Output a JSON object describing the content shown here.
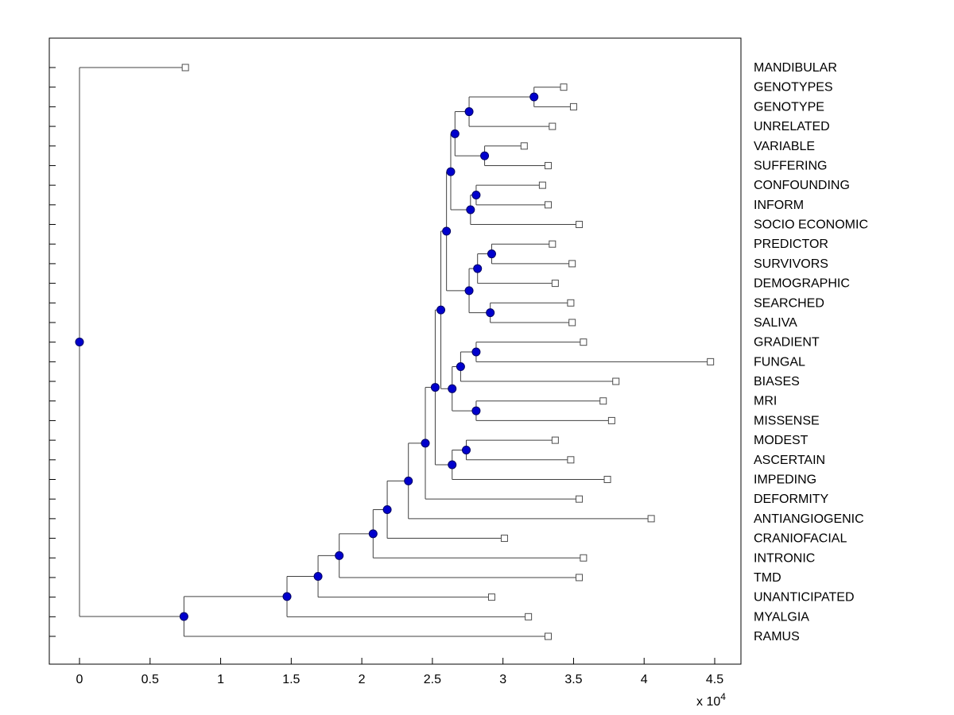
{
  "figure": {
    "colors": {
      "background": "#ffffff",
      "axis": "#000000",
      "text": "#000000",
      "branch_line": "#404040",
      "branch_node_fill": "#0000cd",
      "branch_node_edge": "#000066",
      "leaf_marker_fill": "#ffffff",
      "leaf_marker_edge": "#4d4d4d"
    }
  },
  "chart_data": {
    "type": "dendrogram",
    "title": "",
    "xlabel": "",
    "ylabel": "",
    "orientation": "horizontal-leaves-right",
    "grid": false,
    "legend": false,
    "x_axis": {
      "tick_labels": [
        "0",
        "0.5",
        "1",
        "1.5",
        "2",
        "2.5",
        "3",
        "3.5",
        "4",
        "4.5"
      ],
      "tick_values": [
        0,
        5000,
        10000,
        15000,
        20000,
        25000,
        30000,
        35000,
        40000,
        45000
      ],
      "exponent_label": "x 10^4",
      "exponent_prefix": "x 10",
      "exponent_value": "4",
      "range": [
        -2000,
        47000
      ]
    },
    "leaf_labels": [
      "MANDIBULAR",
      "GENOTYPES",
      "GENOTYPE",
      "UNRELATED",
      "VARIABLE",
      "SUFFERING",
      "CONFOUNDING",
      "INFORM",
      "SOCIO ECONOMIC",
      "PREDICTOR",
      "SURVIVORS",
      "DEMOGRAPHIC",
      "SEARCHED",
      "SALIVA",
      "GRADIENT",
      "FUNGAL",
      "BIASES",
      "MRI",
      "MISSENSE",
      "MODEST",
      "ASCERTAIN",
      "IMPEDING",
      "DEFORMITY",
      "ANTIANGIOGENIC",
      "CRANIOFACIAL",
      "INTRONIC",
      "TMD",
      "UNANTICIPATED",
      "MYALGIA",
      "RAMUS"
    ],
    "tree": {
      "dist": 0,
      "children": [
        {
          "name": "MANDIBULAR",
          "dist": 7500
        },
        {
          "dist": 7400,
          "children": [
            {
              "dist": 14700,
              "children": [
                {
                  "dist": 16900,
                  "children": [
                    {
                      "dist": 18400,
                      "children": [
                        {
                          "dist": 20800,
                          "children": [
                            {
                              "dist": 21800,
                              "children": [
                                {
                                  "dist": 23300,
                                  "children": [
                                    {
                                      "dist": 24500,
                                      "children": [
                                        {
                                          "dist": 25200,
                                          "children": [
                                            {
                                              "dist": 25600,
                                              "children": [
                                                {
                                                  "dist": 26000,
                                                  "children": [
                                                    {
                                                      "dist": 26300,
                                                      "children": [
                                                        {
                                                          "dist": 26600,
                                                          "children": [
                                                            {
                                                              "dist": 27600,
                                                              "children": [
                                                                {
                                                                  "dist": 32200,
                                                                  "children": [
                                                                    {
                                                                      "name": "GENOTYPES",
                                                                      "dist": 34300
                                                                    },
                                                                    {
                                                                      "name": "GENOTYPE",
                                                                      "dist": 35000
                                                                    }
                                                                  ]
                                                                },
                                                                {
                                                                  "name": "UNRELATED",
                                                                  "dist": 33500
                                                                }
                                                              ]
                                                            },
                                                            {
                                                              "dist": 28700,
                                                              "children": [
                                                                {
                                                                  "name": "VARIABLE",
                                                                  "dist": 31500
                                                                },
                                                                {
                                                                  "name": "SUFFERING",
                                                                  "dist": 33200
                                                                }
                                                              ]
                                                            }
                                                          ]
                                                        },
                                                        {
                                                          "dist": 27700,
                                                          "children": [
                                                            {
                                                              "dist": 28100,
                                                              "children": [
                                                                {
                                                                  "name": "CONFOUNDING",
                                                                  "dist": 32800
                                                                },
                                                                {
                                                                  "name": "INFORM",
                                                                  "dist": 33200
                                                                }
                                                              ]
                                                            },
                                                            {
                                                              "name": "SOCIO ECONOMIC",
                                                              "dist": 35400
                                                            }
                                                          ]
                                                        }
                                                      ]
                                                    },
                                                    {
                                                      "dist": 27600,
                                                      "children": [
                                                        {
                                                          "dist": 28200,
                                                          "children": [
                                                            {
                                                              "dist": 29200,
                                                              "children": [
                                                                {
                                                                  "name": "PREDICTOR",
                                                                  "dist": 33500
                                                                },
                                                                {
                                                                  "name": "SURVIVORS",
                                                                  "dist": 34900
                                                                }
                                                              ]
                                                            },
                                                            {
                                                              "name": "DEMOGRAPHIC",
                                                              "dist": 33700
                                                            }
                                                          ]
                                                        },
                                                        {
                                                          "dist": 29100,
                                                          "children": [
                                                            {
                                                              "name": "SEARCHED",
                                                              "dist": 34800
                                                            },
                                                            {
                                                              "name": "SALIVA",
                                                              "dist": 34900
                                                            }
                                                          ]
                                                        }
                                                      ]
                                                    }
                                                  ]
                                                },
                                                {
                                                  "dist": 26400,
                                                  "children": [
                                                    {
                                                      "dist": 27000,
                                                      "children": [
                                                        {
                                                          "dist": 28100,
                                                          "children": [
                                                            {
                                                              "name": "GRADIENT",
                                                              "dist": 35700
                                                            },
                                                            {
                                                              "name": "FUNGAL",
                                                              "dist": 44700
                                                            }
                                                          ]
                                                        },
                                                        {
                                                          "name": "BIASES",
                                                          "dist": 38000
                                                        }
                                                      ]
                                                    },
                                                    {
                                                      "dist": 28100,
                                                      "children": [
                                                        {
                                                          "name": "MRI",
                                                          "dist": 37100
                                                        },
                                                        {
                                                          "name": "MISSENSE",
                                                          "dist": 37700
                                                        }
                                                      ]
                                                    }
                                                  ]
                                                }
                                              ]
                                            },
                                            {
                                              "dist": 26400,
                                              "children": [
                                                {
                                                  "dist": 27400,
                                                  "children": [
                                                    {
                                                      "name": "MODEST",
                                                      "dist": 33700
                                                    },
                                                    {
                                                      "name": "ASCERTAIN",
                                                      "dist": 34800
                                                    }
                                                  ]
                                                },
                                                {
                                                  "name": "IMPEDING",
                                                  "dist": 37400
                                                }
                                              ]
                                            }
                                          ]
                                        },
                                        {
                                          "name": "DEFORMITY",
                                          "dist": 35400
                                        }
                                      ]
                                    },
                                    {
                                      "name": "ANTIANGIOGENIC",
                                      "dist": 40500
                                    }
                                  ]
                                },
                                {
                                  "name": "CRANIOFACIAL",
                                  "dist": 30100
                                }
                              ]
                            },
                            {
                              "name": "INTRONIC",
                              "dist": 35700
                            }
                          ]
                        },
                        {
                          "name": "TMD",
                          "dist": 35400
                        }
                      ]
                    },
                    {
                      "name": "UNANTICIPATED",
                      "dist": 29200
                    }
                  ]
                },
                {
                  "name": "MYALGIA",
                  "dist": 31800
                }
              ]
            },
            {
              "name": "RAMUS",
              "dist": 33200
            }
          ]
        }
      ]
    }
  }
}
